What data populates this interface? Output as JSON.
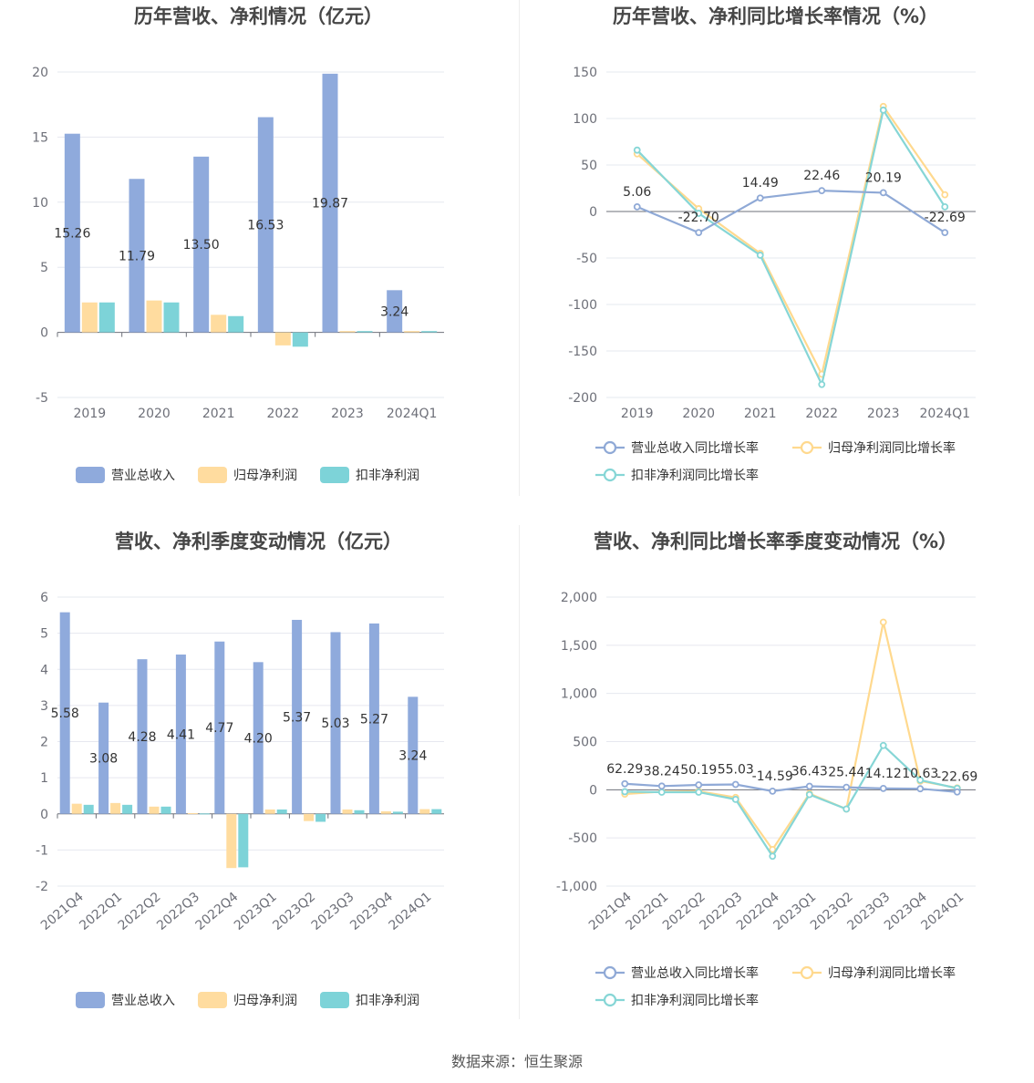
{
  "colors": {
    "revenue": "#8faadc",
    "net": "#ffdc9f",
    "deducted": "#7dd3d8",
    "rev_line": "#8fa9d6",
    "net_line": "#ffd98e",
    "ded_line": "#86d6d6"
  },
  "legend": {
    "revenue": "营业总收入",
    "net": "归母净利润",
    "deducted": "扣非净利润",
    "revenue_growth": "营业总收入同比增长率",
    "net_growth": "归母净利润同比增长率",
    "deducted_growth": "扣非净利润同比增长率"
  },
  "footer": "数据来源：恒生聚源",
  "chart_data": [
    {
      "type": "bar",
      "title": "历年营收、净利情况（亿元）",
      "categories": [
        "2019",
        "2020",
        "2021",
        "2022",
        "2023",
        "2024Q1"
      ],
      "ylim": [
        -5,
        20
      ],
      "yticks": [
        "-5",
        "0",
        "5",
        "10",
        "15",
        "20"
      ],
      "series": [
        {
          "name": "营业总收入",
          "values": [
            15.26,
            11.79,
            13.5,
            16.53,
            19.87,
            3.24
          ]
        },
        {
          "name": "归母净利润",
          "values": [
            2.3,
            2.45,
            1.35,
            -1.0,
            0.1,
            0.1
          ]
        },
        {
          "name": "扣非净利润",
          "values": [
            2.3,
            2.3,
            1.25,
            -1.1,
            0.1,
            0.1
          ]
        }
      ],
      "data_labels": [
        "15.26",
        "11.79",
        "13.50",
        "16.53",
        "19.87",
        "3.24"
      ]
    },
    {
      "type": "line",
      "title": "历年营收、净利同比增长率情况（%）",
      "categories": [
        "2019",
        "2020",
        "2021",
        "2022",
        "2023",
        "2024Q1"
      ],
      "ylim": [
        -200,
        150
      ],
      "yticks": [
        "-200",
        "-150",
        "-100",
        "-50",
        "0",
        "50",
        "100",
        "150"
      ],
      "series": [
        {
          "name": "营业总收入同比增长率",
          "values": [
            5.06,
            -22.7,
            14.49,
            22.46,
            20.19,
            -22.69
          ]
        },
        {
          "name": "归母净利润同比增长率",
          "values": [
            62,
            3,
            -45,
            -175,
            113,
            18
          ]
        },
        {
          "name": "扣非净利润同比增长率",
          "values": [
            66,
            -2,
            -47,
            -186,
            109,
            5
          ]
        }
      ],
      "data_labels": [
        "5.06",
        "-22.70",
        "14.49",
        "22.46",
        "20.19",
        "-22.69"
      ]
    },
    {
      "type": "bar",
      "title": "营收、净利季度变动情况（亿元）",
      "categories": [
        "2021Q4",
        "2022Q1",
        "2022Q2",
        "2022Q3",
        "2022Q4",
        "2023Q1",
        "2023Q2",
        "2023Q3",
        "2023Q4",
        "2024Q1"
      ],
      "ylim": [
        -2,
        6
      ],
      "yticks": [
        "-2",
        "-1",
        "0",
        "1",
        "2",
        "3",
        "4",
        "5",
        "6"
      ],
      "series": [
        {
          "name": "营业总收入",
          "values": [
            5.58,
            3.08,
            4.28,
            4.41,
            4.77,
            4.2,
            5.37,
            5.03,
            5.27,
            3.24
          ]
        },
        {
          "name": "归母净利润",
          "values": [
            0.28,
            0.3,
            0.2,
            0.02,
            -1.5,
            0.12,
            -0.2,
            0.12,
            0.07,
            0.13
          ]
        },
        {
          "name": "扣非净利润",
          "values": [
            0.25,
            0.25,
            0.2,
            0.01,
            -1.48,
            0.12,
            -0.22,
            0.1,
            0.06,
            0.13
          ]
        }
      ],
      "data_labels": [
        "5.58",
        "3.08",
        "4.28",
        "4.41",
        "4.77",
        "4.20",
        "5.37",
        "5.03",
        "5.27",
        "3.24"
      ]
    },
    {
      "type": "line",
      "title": "营收、净利同比增长率季度变动情况（%）",
      "categories": [
        "2021Q4",
        "2022Q1",
        "2022Q2",
        "2022Q3",
        "2022Q4",
        "2023Q1",
        "2023Q2",
        "2023Q3",
        "2023Q4",
        "2024Q1"
      ],
      "ylim": [
        -1000,
        2000
      ],
      "yticks": [
        "-1,000",
        "-500",
        "0",
        "500",
        "1,000",
        "1,500",
        "2,000"
      ],
      "series": [
        {
          "name": "营业总收入同比增长率",
          "values": [
            62.29,
            38.24,
            50.19,
            55.03,
            -14.59,
            36.43,
            25.44,
            14.12,
            10.63,
            -22.69
          ]
        },
        {
          "name": "归母净利润同比增长率",
          "values": [
            -45,
            -20,
            -15,
            -80,
            -620,
            -40,
            -200,
            1740,
            90,
            20
          ]
        },
        {
          "name": "扣非净利润同比增长率",
          "values": [
            -20,
            -25,
            -25,
            -100,
            -690,
            -50,
            -200,
            460,
            100,
            15
          ]
        }
      ],
      "data_labels": [
        "62.29",
        "38.24",
        "50.19",
        "55.03",
        "-14.59",
        "36.43",
        "25.44",
        "14.12",
        "10.63",
        "-22.69"
      ]
    }
  ]
}
